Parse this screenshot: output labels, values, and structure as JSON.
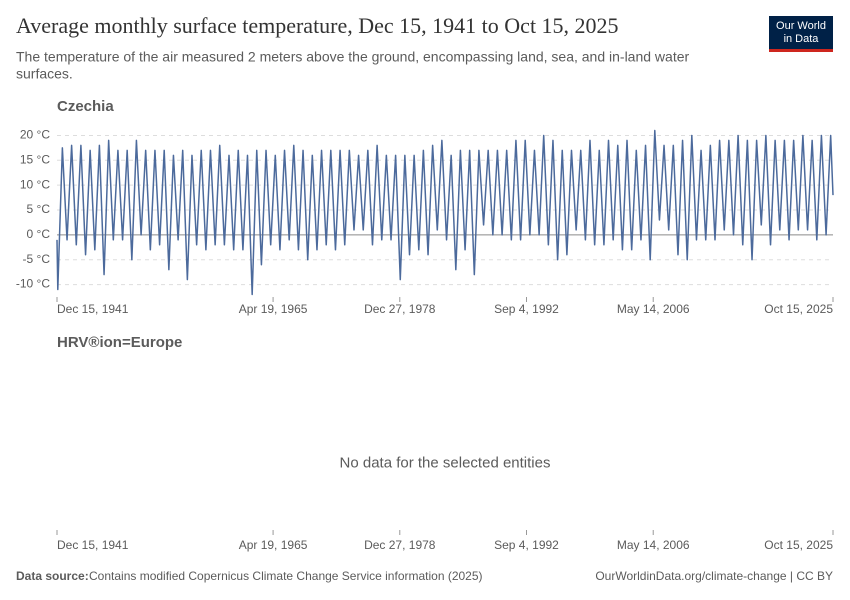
{
  "header": {
    "title": "Average monthly surface temperature, Dec 15, 1941 to Oct 15, 2025",
    "subtitle_lines": [
      "The temperature of the air measured 2 meters above the ground, encompassing land, sea, and in-land water",
      "surfaces."
    ],
    "logo_lines": [
      "Our World",
      "in Data"
    ]
  },
  "footer": {
    "source_label": "Data source:",
    "source": "Contains modified Copernicus Climate Change Service information (2025)",
    "credit": "OurWorldinData.org/climate-change | CC BY"
  },
  "chart_data": [
    {
      "type": "line",
      "xlim": [
        "1941-12-15",
        "2025-10-15"
      ],
      "xticks": [
        {
          "value": "1941-12-15",
          "label": "Dec 15, 1941"
        },
        {
          "value": "1965-04-19",
          "label": "Apr 19, 1965"
        },
        {
          "value": "1978-12-27",
          "label": "Dec 27, 1978"
        },
        {
          "value": "1992-09-04",
          "label": "Sep 4, 1992"
        },
        {
          "value": "2006-05-14",
          "label": "May 14, 2006"
        },
        {
          "value": "2025-10-15",
          "label": "Oct 15, 2025"
        }
      ],
      "ylim": [
        -12.5,
        21.5
      ],
      "yticks": [
        {
          "value": -10,
          "label": "-10 °C"
        },
        {
          "value": -5,
          "label": "-5 °C"
        },
        {
          "value": 0,
          "label": "0 °C"
        },
        {
          "value": 5,
          "label": "5 °C"
        },
        {
          "value": 10,
          "label": "10 °C"
        },
        {
          "value": 15,
          "label": "15 °C"
        },
        {
          "value": 20,
          "label": "20 °C"
        }
      ],
      "grid": true,
      "x": [
        "1941-12-15",
        "1942-01-15",
        "1942-07-15",
        "1943-01-15",
        "1943-07-15",
        "1944-01-15",
        "1944-07-15",
        "1945-01-15",
        "1945-07-15",
        "1946-01-15",
        "1946-07-15",
        "1947-01-15",
        "1947-07-15",
        "1948-01-15",
        "1948-07-15",
        "1949-01-15",
        "1949-07-15",
        "1950-01-15",
        "1950-07-15",
        "1951-01-15",
        "1951-07-15",
        "1952-01-15",
        "1952-07-15",
        "1953-01-15",
        "1953-07-15",
        "1954-01-15",
        "1954-07-15",
        "1955-01-15",
        "1955-07-15",
        "1956-01-15",
        "1956-07-15",
        "1957-01-15",
        "1957-07-15",
        "1958-01-15",
        "1958-07-15",
        "1959-01-15",
        "1959-07-15",
        "1960-01-15",
        "1960-07-15",
        "1961-01-15",
        "1961-07-15",
        "1962-01-15",
        "1962-07-15",
        "1963-01-15",
        "1963-07-15",
        "1964-01-15",
        "1964-07-15",
        "1965-01-15",
        "1965-07-15",
        "1966-01-15",
        "1966-07-15",
        "1967-01-15",
        "1967-07-15",
        "1968-01-15",
        "1968-07-15",
        "1969-01-15",
        "1969-07-15",
        "1970-01-15",
        "1970-07-15",
        "1971-01-15",
        "1971-07-15",
        "1972-01-15",
        "1972-07-15",
        "1973-01-15",
        "1973-07-15",
        "1974-01-15",
        "1974-07-15",
        "1975-01-15",
        "1975-07-15",
        "1976-01-15",
        "1976-07-15",
        "1977-01-15",
        "1977-07-15",
        "1978-01-15",
        "1978-07-15",
        "1979-01-15",
        "1979-07-15",
        "1980-01-15",
        "1980-07-15",
        "1981-01-15",
        "1981-07-15",
        "1982-01-15",
        "1982-07-15",
        "1983-01-15",
        "1983-07-15",
        "1984-01-15",
        "1984-07-15",
        "1985-01-15",
        "1985-07-15",
        "1986-01-15",
        "1986-07-15",
        "1987-01-15",
        "1987-07-15",
        "1988-01-15",
        "1988-07-15",
        "1989-01-15",
        "1989-07-15",
        "1990-01-15",
        "1990-07-15",
        "1991-01-15",
        "1991-07-15",
        "1992-01-15",
        "1992-07-15",
        "1993-01-15",
        "1993-07-15",
        "1994-01-15",
        "1994-07-15",
        "1995-01-15",
        "1995-07-15",
        "1996-01-15",
        "1996-07-15",
        "1997-01-15",
        "1997-07-15",
        "1998-01-15",
        "1998-07-15",
        "1999-01-15",
        "1999-07-15",
        "2000-01-15",
        "2000-07-15",
        "2001-01-15",
        "2001-07-15",
        "2002-01-15",
        "2002-07-15",
        "2003-01-15",
        "2003-07-15",
        "2004-01-15",
        "2004-07-15",
        "2005-01-15",
        "2005-07-15",
        "2006-01-15",
        "2006-07-15",
        "2007-01-15",
        "2007-07-15",
        "2008-01-15",
        "2008-07-15",
        "2009-01-15",
        "2009-07-15",
        "2010-01-15",
        "2010-07-15",
        "2011-01-15",
        "2011-07-15",
        "2012-01-15",
        "2012-07-15",
        "2013-01-15",
        "2013-07-15",
        "2014-01-15",
        "2014-07-15",
        "2015-01-15",
        "2015-07-15",
        "2016-01-15",
        "2016-07-15",
        "2017-01-15",
        "2017-07-15",
        "2018-01-15",
        "2018-07-15",
        "2019-01-15",
        "2019-07-15",
        "2020-01-15",
        "2020-07-15",
        "2021-01-15",
        "2021-07-15",
        "2022-01-15",
        "2022-07-15",
        "2023-01-15",
        "2023-07-15",
        "2024-01-15",
        "2024-07-15",
        "2025-01-15",
        "2025-07-15",
        "2025-10-15"
      ],
      "series": [
        {
          "name": "Czechia",
          "color": "#4c6a9c",
          "values": [
            -1,
            -11,
            17.5,
            -1,
            18,
            -2,
            18,
            -4,
            17,
            -3,
            18,
            -8,
            19,
            -1,
            17,
            -1,
            17,
            -5,
            19,
            0,
            17,
            -3,
            17,
            -2,
            17,
            -7,
            16,
            -1,
            17,
            -9,
            16,
            -2,
            17,
            -3,
            17,
            -2,
            18,
            -2,
            16,
            -3,
            17,
            -3,
            16,
            -12,
            17,
            -6,
            17,
            -2,
            16,
            -3,
            17,
            -1,
            18,
            -3,
            17,
            -5,
            16,
            -3,
            17,
            -2,
            17,
            -3,
            17,
            -2,
            17,
            1,
            16,
            1,
            17,
            -2,
            18,
            -1,
            16,
            -1,
            16,
            -9,
            16,
            -4,
            16,
            -3,
            17,
            -4,
            18,
            1,
            19,
            -1,
            16,
            -7,
            17,
            -3,
            17,
            -8,
            17,
            2,
            17,
            0,
            17,
            0,
            17,
            -1,
            19,
            -1,
            19,
            0,
            17,
            0,
            20,
            -2,
            19,
            -5,
            17,
            -4,
            17,
            1,
            17,
            -1,
            19,
            -2,
            17,
            -2,
            19,
            -1,
            18,
            -3,
            19,
            -3,
            17,
            -1,
            18,
            -5,
            21,
            3,
            18,
            1,
            18,
            -4,
            19,
            -5,
            20,
            -1,
            17,
            -1,
            18,
            -1,
            19,
            1,
            19,
            0,
            20,
            -2,
            19,
            -5,
            19,
            2,
            20,
            -2,
            19,
            1,
            19,
            -1,
            19,
            1,
            20,
            1,
            19,
            -1,
            20,
            0,
            20,
            8
          ]
        }
      ]
    },
    {
      "type": "line",
      "xlim": [
        "1941-12-15",
        "2025-10-15"
      ],
      "xticks": [
        {
          "value": "1941-12-15",
          "label": "Dec 15, 1941"
        },
        {
          "value": "1965-04-19",
          "label": "Apr 19, 1965"
        },
        {
          "value": "1978-12-27",
          "label": "Dec 27, 1978"
        },
        {
          "value": "1992-09-04",
          "label": "Sep 4, 1992"
        },
        {
          "value": "2006-05-14",
          "label": "May 14, 2006"
        },
        {
          "value": "2025-10-15",
          "label": "Oct 15, 2025"
        }
      ],
      "x": [],
      "series": [
        {
          "name": "HRV®ion=Europe",
          "color": "#4c6a9c",
          "values": []
        }
      ],
      "note": "No data for the selected entities"
    }
  ]
}
